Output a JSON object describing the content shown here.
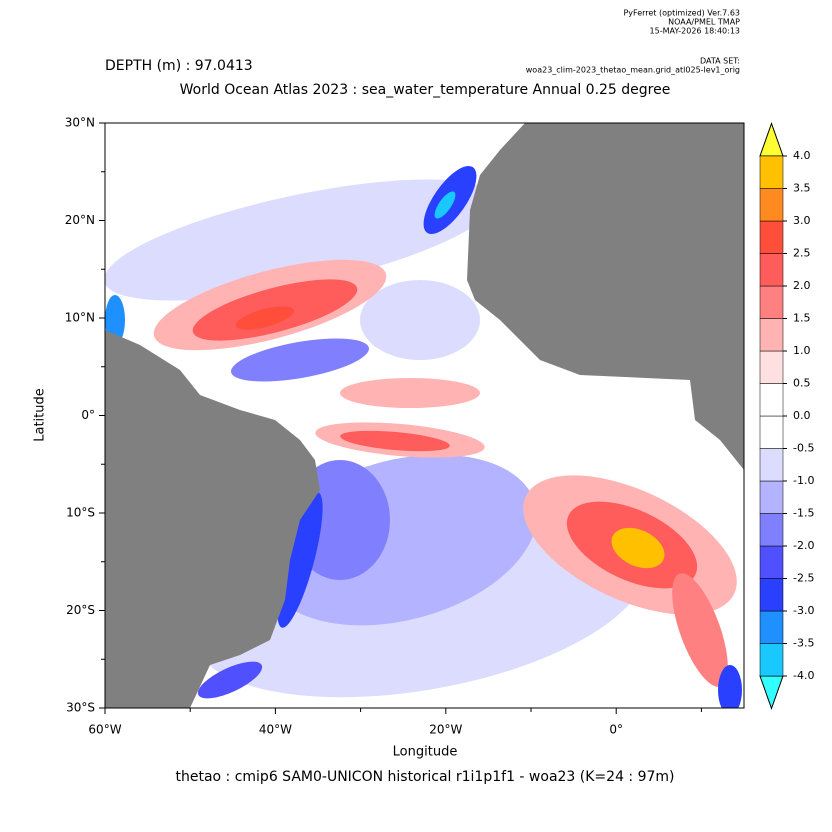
{
  "chart_data": {
    "type": "map",
    "header_lines": [
      "PyFerret (optimized) Ver.7.63",
      "NOAA/PMEL TMAP",
      "15-MAY-2026 18:40:13"
    ],
    "dataset_label": "DATA SET:",
    "dataset": "woa23_clim-2023_thetao_mean.grid_atl025-lev1_orig",
    "depth_label": "DEPTH (m) : 97.0413",
    "title": "World Ocean Atlas 2023 : sea_water_temperature Annual  0.25 degree",
    "x_label": "Longitude",
    "y_label": "Latitude",
    "footer": "thetao : cmip6 SAM0-UNICON historical r1i1p1f1 - woa23  (K=24 : 97m)",
    "xlim": [
      -60,
      15
    ],
    "ylim": [
      -30,
      30
    ],
    "xticks": [
      {
        "value": -60,
        "label": "60°W"
      },
      {
        "value": -40,
        "label": "40°W"
      },
      {
        "value": -20,
        "label": "20°W"
      },
      {
        "value": 0,
        "label": "0°"
      }
    ],
    "xminor": [
      -50,
      -30,
      -10,
      10
    ],
    "yticks": [
      {
        "value": 30,
        "label": "30°N"
      },
      {
        "value": 20,
        "label": "20°N"
      },
      {
        "value": 10,
        "label": "10°N"
      },
      {
        "value": 0,
        "label": "0°"
      },
      {
        "value": -10,
        "label": "10°S"
      },
      {
        "value": -20,
        "label": "20°S"
      },
      {
        "value": -30,
        "label": "30°S"
      }
    ],
    "yminor": [
      25,
      15,
      5,
      -5,
      -15,
      -25
    ],
    "land_color": "#808080",
    "colorbar": {
      "levels": [
        {
          "value": 4,
          "label": "4.0"
        },
        3.5,
        {
          "value": 3,
          "label": "3.0"
        },
        2.5,
        {
          "value": 2,
          "label": "2.0"
        },
        1.5,
        {
          "value": 1,
          "label": "1.0"
        },
        0.5,
        {
          "value": 0,
          "label": "0.0"
        },
        -0.5,
        {
          "value": -1,
          "label": "-1.0"
        },
        -1.5,
        {
          "value": -2,
          "label": "-2.0"
        },
        -2.5,
        {
          "value": -3,
          "label": "-3.0"
        },
        -3.5,
        {
          "value": -4,
          "label": "-4.0"
        }
      ],
      "colors": [
        "#33ffff",
        "#19c8ff",
        "#1e90ff",
        "#2a40ff",
        "#5050ff",
        "#8080ff",
        "#b3b3ff",
        "#dcdcff",
        "#ffffff",
        "#ffffff",
        "#ffe0e0",
        "#ffb3b3",
        "#ff8080",
        "#ff5c5c",
        "#ff4f3a",
        "#ff8a20",
        "#ffc000",
        "#ffff33"
      ]
    }
  }
}
